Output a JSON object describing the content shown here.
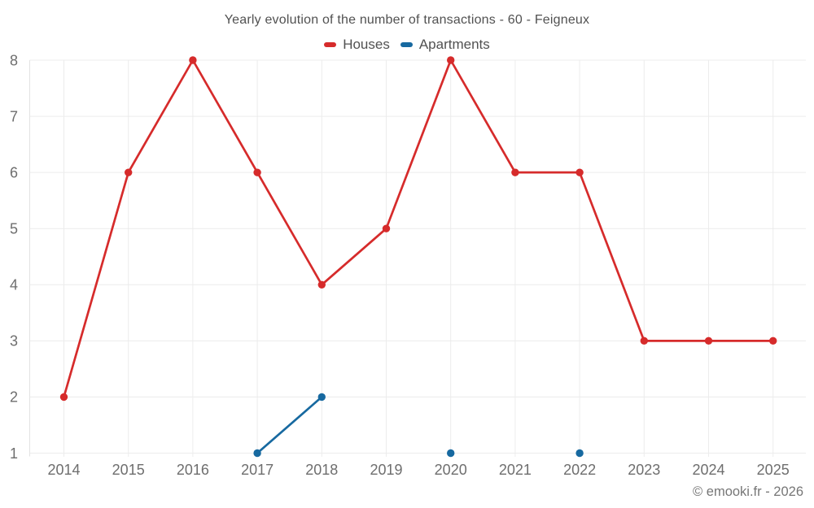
{
  "title": "Yearly evolution of the number of transactions - 60 - Feigneux",
  "footer": "© emooki.fr - 2026",
  "legend": {
    "items": [
      {
        "label": "Houses",
        "color": "#d62b2b"
      },
      {
        "label": "Apartments",
        "color": "#1769a0"
      }
    ]
  },
  "colors": {
    "houses": "#d62b2b",
    "apartments": "#1769a0",
    "gridline": "#ececec",
    "axis_line": "#e3e3e3",
    "tick_label": "#6e6e6e",
    "title_text": "#515151",
    "footer_text": "#767676"
  },
  "chart_data": {
    "type": "line",
    "title": "Yearly evolution of the number of transactions - 60 - Feigneux",
    "x": [
      2014,
      2015,
      2016,
      2017,
      2018,
      2019,
      2020,
      2021,
      2022,
      2023,
      2024,
      2025
    ],
    "series": [
      {
        "name": "Houses",
        "color": "#d62b2b",
        "values": [
          2,
          6,
          8,
          6,
          4,
          5,
          8,
          6,
          6,
          3,
          3,
          3
        ]
      },
      {
        "name": "Apartments",
        "color": "#1769a0",
        "values": [
          null,
          null,
          null,
          1,
          2,
          null,
          1,
          null,
          1,
          null,
          null,
          null
        ]
      }
    ],
    "xlabel": "",
    "ylabel": "",
    "ylim": [
      1,
      8
    ],
    "yticks": [
      1,
      2,
      3,
      4,
      5,
      6,
      7,
      8
    ],
    "grid": true,
    "legend_position": "top"
  }
}
